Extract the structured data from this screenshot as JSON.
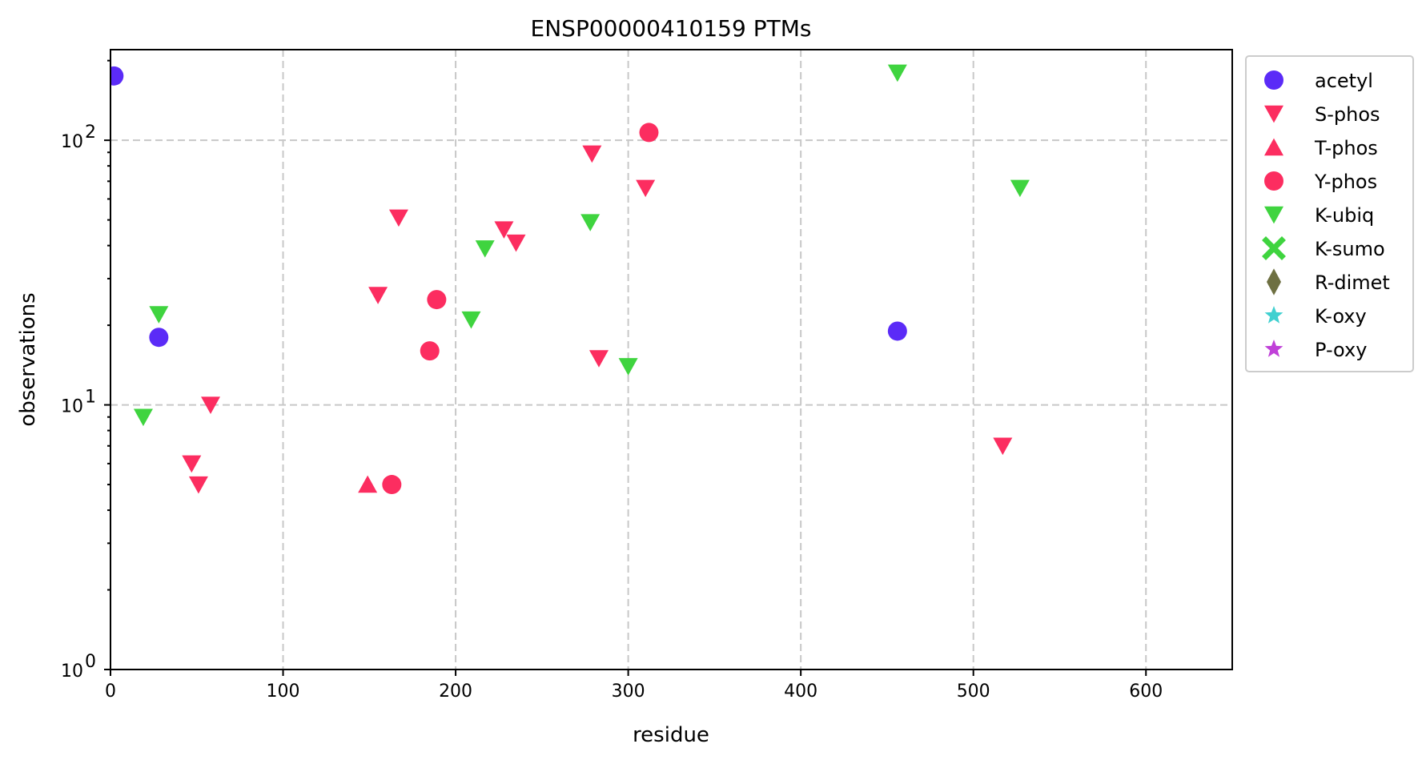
{
  "chart_data": {
    "type": "scatter",
    "title": "ENSP00000410159 PTMs",
    "xlabel": "residue",
    "ylabel": "observations",
    "xlim": [
      0,
      650
    ],
    "ylim": [
      1,
      220
    ],
    "yscale": "log",
    "grid": true,
    "legend_position": "outside-right",
    "x_ticks": [
      0,
      100,
      200,
      300,
      400,
      500,
      600
    ],
    "y_ticks": [
      {
        "value": 1,
        "base": "10",
        "exp": "0"
      },
      {
        "value": 10,
        "base": "10",
        "exp": "1"
      },
      {
        "value": 100,
        "base": "10",
        "exp": "2"
      }
    ],
    "series": [
      {
        "name": "acetyl",
        "marker": "circle",
        "color": "#5b2bf7",
        "points": [
          [
            2,
            175
          ],
          [
            28,
            18
          ],
          [
            456,
            19
          ]
        ]
      },
      {
        "name": "S-phos",
        "marker": "triangle-down",
        "color": "#fc2d60",
        "points": [
          [
            47,
            6
          ],
          [
            51,
            5
          ],
          [
            58,
            10
          ],
          [
            155,
            26
          ],
          [
            167,
            51
          ],
          [
            228,
            46
          ],
          [
            235,
            41
          ],
          [
            279,
            89
          ],
          [
            283,
            15
          ],
          [
            310,
            66
          ],
          [
            517,
            7
          ]
        ]
      },
      {
        "name": "T-phos",
        "marker": "triangle-up",
        "color": "#fc2d60",
        "points": [
          [
            149,
            5
          ]
        ]
      },
      {
        "name": "Y-phos",
        "marker": "circle",
        "color": "#fc2d60",
        "points": [
          [
            163,
            5
          ],
          [
            185,
            16
          ],
          [
            189,
            25
          ],
          [
            312,
            107
          ]
        ]
      },
      {
        "name": "K-ubiq",
        "marker": "triangle-down",
        "color": "#3fd43f",
        "points": [
          [
            19,
            9
          ],
          [
            28,
            22
          ],
          [
            209,
            21
          ],
          [
            217,
            39
          ],
          [
            278,
            49
          ],
          [
            300,
            14
          ],
          [
            456,
            180
          ],
          [
            527,
            66
          ]
        ]
      },
      {
        "name": "K-sumo",
        "marker": "x",
        "color": "#3fd43f",
        "points": []
      },
      {
        "name": "R-dimet",
        "marker": "diamond",
        "color": "#6e7042",
        "points": []
      },
      {
        "name": "K-oxy",
        "marker": "star",
        "color": "#40d0d0",
        "points": []
      },
      {
        "name": "P-oxy",
        "marker": "star",
        "color": "#c040d8",
        "points": []
      }
    ]
  }
}
